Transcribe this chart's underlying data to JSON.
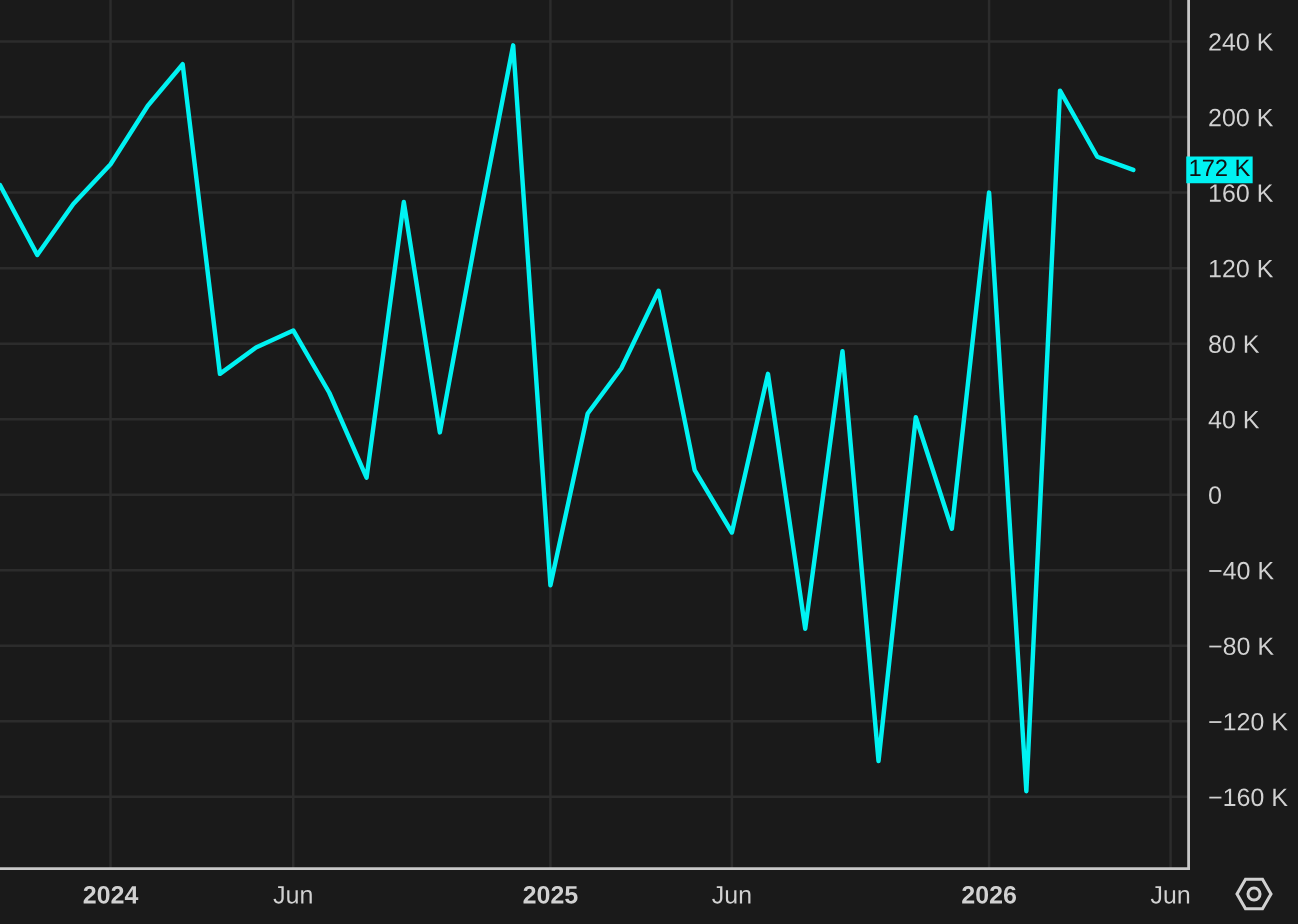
{
  "chart_data": {
    "type": "line",
    "x": [
      "2023-10",
      "2023-11",
      "2023-12",
      "2024-01",
      "2024-02",
      "2024-03",
      "2024-04",
      "2024-05",
      "2024-06",
      "2024-07",
      "2024-08",
      "2024-09",
      "2024-10",
      "2024-11",
      "2024-12",
      "2025-01",
      "2025-02",
      "2025-03",
      "2025-04",
      "2025-05",
      "2025-06",
      "2025-07",
      "2025-08",
      "2025-09",
      "2025-10",
      "2025-11",
      "2025-12",
      "2026-01",
      "2026-02",
      "2026-03",
      "2026-04",
      "2026-05"
    ],
    "series": [
      {
        "color": "#00f2f2",
        "values": [
          164,
          127,
          154,
          175,
          206,
          228,
          64,
          78,
          87,
          54,
          9,
          155,
          33,
          140,
          238,
          -48,
          43,
          67,
          108,
          13,
          -20,
          64,
          -71,
          76,
          -141,
          41,
          -18,
          160,
          -157,
          214,
          179,
          172
        ]
      }
    ],
    "xlim": [
      "2023-10-01",
      "2026-06-16"
    ],
    "xticks": [
      {
        "value": "2024-01-01",
        "label": "2024"
      },
      {
        "value": "2024-06-01",
        "label": "Jun"
      },
      {
        "value": "2025-01-01",
        "label": "2025"
      },
      {
        "value": "2025-06-01",
        "label": "Jun"
      },
      {
        "value": "2026-01-01",
        "label": "2026"
      },
      {
        "value": "2026-06-01",
        "label": "Jun"
      }
    ],
    "ylim": [
      -198,
      262
    ],
    "yticks": [
      {
        "value": 240,
        "label": "240 K"
      },
      {
        "value": 200,
        "label": "200 K"
      },
      {
        "value": 160,
        "label": "160 K"
      },
      {
        "value": 120,
        "label": "120 K"
      },
      {
        "value": 80,
        "label": "80 K"
      },
      {
        "value": 40,
        "label": "40 K"
      },
      0,
      {
        "value": -40,
        "label": "−40 K"
      },
      {
        "value": -80,
        "label": "−80 K"
      },
      {
        "value": -120,
        "label": "−120 K"
      },
      {
        "value": -160,
        "label": "−160 K"
      }
    ],
    "annotations": [
      {
        "text": "172 K",
        "x": "2026-05",
        "y": 172
      }
    ],
    "grid": true
  }
}
